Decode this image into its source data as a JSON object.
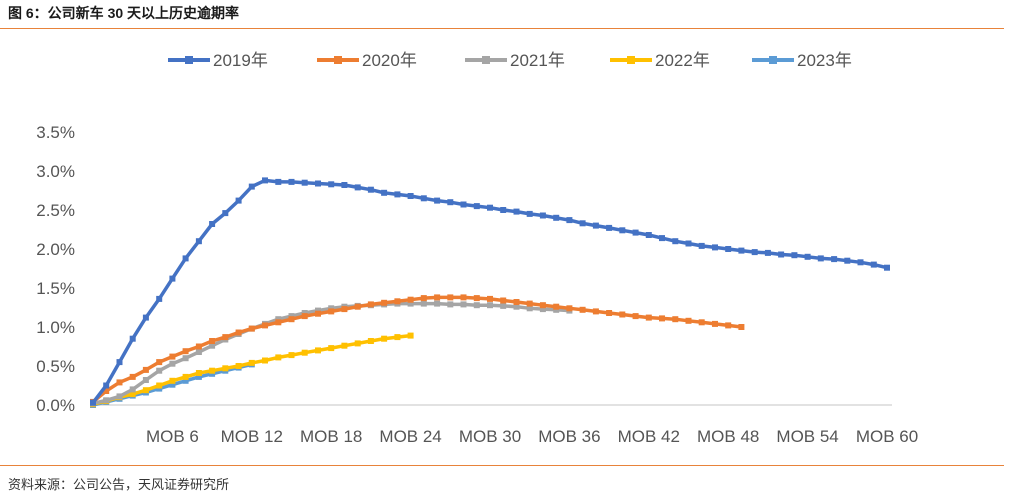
{
  "header": {
    "title": "图 6：公司新车 30 天以上历史逾期率"
  },
  "footer": {
    "source": "资料来源：公司公告，天风证券研究所"
  },
  "chart_data": {
    "type": "line",
    "title": "",
    "xlabel": "",
    "ylabel": "",
    "x_range": [
      0,
      60
    ],
    "ylim": [
      0,
      3.5
    ],
    "y_ticks": [
      0,
      0.5,
      1.0,
      1.5,
      2.0,
      2.5,
      3.0,
      3.5
    ],
    "y_tick_labels": [
      "0.0%",
      "0.5%",
      "1.0%",
      "1.5%",
      "2.0%",
      "2.5%",
      "3.0%",
      "3.5%"
    ],
    "x_ticks": [
      6,
      12,
      18,
      24,
      30,
      36,
      42,
      48,
      54,
      60
    ],
    "x_tick_labels": [
      "MOB 6",
      "MOB 12",
      "MOB 18",
      "MOB 24",
      "MOB 30",
      "MOB 36",
      "MOB 42",
      "MOB 48",
      "MOB 54",
      "MOB 60"
    ],
    "grid": false,
    "legend_position": "top",
    "series": [
      {
        "name": "2019年",
        "color": "#4472C4",
        "x_start": 0,
        "values": [
          0.03,
          0.25,
          0.55,
          0.85,
          1.12,
          1.36,
          1.62,
          1.88,
          2.1,
          2.32,
          2.46,
          2.62,
          2.8,
          2.88,
          2.86,
          2.86,
          2.85,
          2.84,
          2.83,
          2.82,
          2.79,
          2.76,
          2.72,
          2.7,
          2.68,
          2.65,
          2.62,
          2.6,
          2.57,
          2.55,
          2.53,
          2.5,
          2.48,
          2.45,
          2.43,
          2.4,
          2.37,
          2.33,
          2.3,
          2.27,
          2.24,
          2.21,
          2.18,
          2.14,
          2.1,
          2.07,
          2.04,
          2.02,
          2.0,
          1.98,
          1.96,
          1.95,
          1.93,
          1.92,
          1.9,
          1.88,
          1.87,
          1.85,
          1.83,
          1.8,
          1.76
        ]
      },
      {
        "name": "2020年",
        "color": "#ED7D31",
        "x_start": 0,
        "values": [
          0.04,
          0.18,
          0.29,
          0.36,
          0.45,
          0.55,
          0.62,
          0.69,
          0.75,
          0.82,
          0.87,
          0.93,
          0.98,
          1.02,
          1.06,
          1.1,
          1.14,
          1.17,
          1.2,
          1.23,
          1.26,
          1.29,
          1.31,
          1.33,
          1.35,
          1.37,
          1.38,
          1.38,
          1.38,
          1.37,
          1.36,
          1.34,
          1.32,
          1.3,
          1.28,
          1.26,
          1.24,
          1.22,
          1.2,
          1.18,
          1.16,
          1.14,
          1.12,
          1.11,
          1.1,
          1.08,
          1.06,
          1.04,
          1.02,
          1.0
        ]
      },
      {
        "name": "2021年",
        "color": "#A5A5A5",
        "x_start": 0,
        "values": [
          0.02,
          0.06,
          0.11,
          0.2,
          0.32,
          0.44,
          0.53,
          0.6,
          0.68,
          0.76,
          0.84,
          0.91,
          0.98,
          1.04,
          1.1,
          1.14,
          1.18,
          1.21,
          1.24,
          1.26,
          1.27,
          1.28,
          1.29,
          1.3,
          1.3,
          1.3,
          1.3,
          1.29,
          1.29,
          1.28,
          1.28,
          1.27,
          1.26,
          1.24,
          1.23,
          1.22,
          1.21
        ]
      },
      {
        "name": "2022年",
        "color": "#FFC000",
        "x_start": 0,
        "values": [
          0.01,
          0.05,
          0.1,
          0.14,
          0.19,
          0.25,
          0.31,
          0.36,
          0.41,
          0.44,
          0.47,
          0.5,
          0.54,
          0.57,
          0.61,
          0.64,
          0.67,
          0.7,
          0.73,
          0.76,
          0.79,
          0.82,
          0.85,
          0.87,
          0.89
        ]
      },
      {
        "name": "2023年",
        "color": "#5B9BD5",
        "x_start": 0,
        "values": [
          0.0,
          0.04,
          0.08,
          0.12,
          0.16,
          0.21,
          0.26,
          0.31,
          0.36,
          0.4,
          0.44,
          0.48,
          0.52
        ]
      }
    ]
  }
}
